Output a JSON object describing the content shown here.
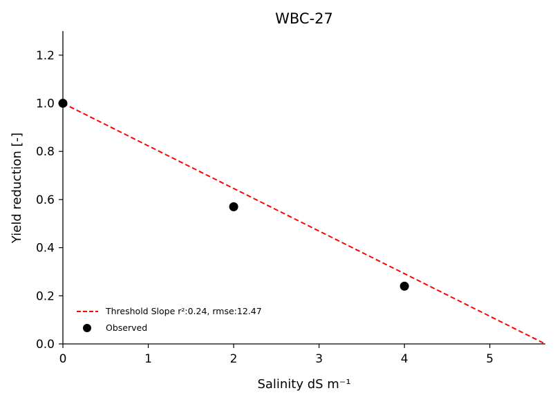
{
  "chart_data": {
    "type": "scatter",
    "title": "WBC-27",
    "xlabel": "Salinity dS m⁻¹",
    "ylabel": "Yield reduction [-]",
    "xlim": [
      0,
      5.65
    ],
    "ylim": [
      0,
      1.3
    ],
    "xticks": [
      0,
      1,
      2,
      3,
      4,
      5
    ],
    "yticks": [
      0.0,
      0.2,
      0.4,
      0.6,
      0.8,
      1.0,
      1.2
    ],
    "xtick_labels": [
      "0",
      "1",
      "2",
      "3",
      "4",
      "5"
    ],
    "ytick_labels": [
      "0.0",
      "0.2",
      "0.4",
      "0.6",
      "0.8",
      "1.0",
      "1.2"
    ],
    "grid": false,
    "legend_position": "lower-left",
    "series": [
      {
        "name": "Threshold Slope r²:0.24, rmse:12.47",
        "kind": "line",
        "style": "dashed",
        "color": "#ff0000",
        "x": [
          0,
          5.65
        ],
        "y": [
          1.0,
          0.0
        ]
      },
      {
        "name": "Observed",
        "kind": "scatter",
        "color": "#000000",
        "x": [
          0,
          2,
          4
        ],
        "y": [
          1.0,
          0.57,
          0.24
        ]
      }
    ]
  }
}
